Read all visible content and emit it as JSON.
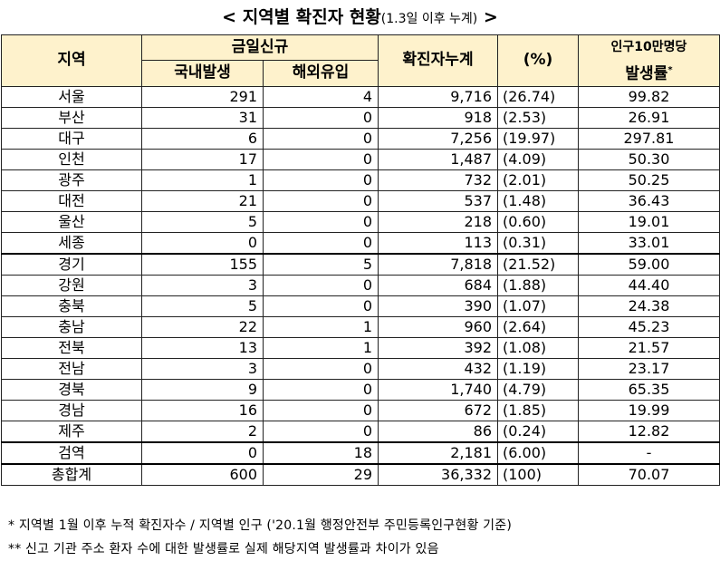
{
  "title": {
    "main": "< 지역별 확진자 현황",
    "sub": "(1.3일 이후 누계)",
    "end": " >"
  },
  "header": {
    "region": "지역",
    "new_cases": "금일신규",
    "domestic": "국내발생",
    "overseas": "해외유입",
    "cumulative": "확진자누계",
    "percent": "(%)",
    "rate_line1": "인구10만명당",
    "rate_line2": "발생률",
    "rate_mark": "*"
  },
  "rows": [
    {
      "region": "서울",
      "domestic": "291",
      "overseas": "4",
      "cumulative": "9,716",
      "percent": "(26.74)",
      "rate": "99.82"
    },
    {
      "region": "부산",
      "domestic": "31",
      "overseas": "0",
      "cumulative": "918",
      "percent": "(2.53)",
      "rate": "26.91"
    },
    {
      "region": "대구",
      "domestic": "6",
      "overseas": "0",
      "cumulative": "7,256",
      "percent": "(19.97)",
      "rate": "297.81"
    },
    {
      "region": "인천",
      "domestic": "17",
      "overseas": "0",
      "cumulative": "1,487",
      "percent": "(4.09)",
      "rate": "50.30"
    },
    {
      "region": "광주",
      "domestic": "1",
      "overseas": "0",
      "cumulative": "732",
      "percent": "(2.01)",
      "rate": "50.25"
    },
    {
      "region": "대전",
      "domestic": "21",
      "overseas": "0",
      "cumulative": "537",
      "percent": "(1.48)",
      "rate": "36.43"
    },
    {
      "region": "울산",
      "domestic": "5",
      "overseas": "0",
      "cumulative": "218",
      "percent": "(0.60)",
      "rate": "19.01"
    },
    {
      "region": "세종",
      "domestic": "0",
      "overseas": "0",
      "cumulative": "113",
      "percent": "(0.31)",
      "rate": "33.01"
    },
    {
      "region": "경기",
      "domestic": "155",
      "overseas": "5",
      "cumulative": "7,818",
      "percent": "(21.52)",
      "rate": "59.00"
    },
    {
      "region": "강원",
      "domestic": "3",
      "overseas": "0",
      "cumulative": "684",
      "percent": "(1.88)",
      "rate": "44.40"
    },
    {
      "region": "충북",
      "domestic": "5",
      "overseas": "0",
      "cumulative": "390",
      "percent": "(1.07)",
      "rate": "24.38"
    },
    {
      "region": "충남",
      "domestic": "22",
      "overseas": "1",
      "cumulative": "960",
      "percent": "(2.64)",
      "rate": "45.23"
    },
    {
      "region": "전북",
      "domestic": "13",
      "overseas": "1",
      "cumulative": "392",
      "percent": "(1.08)",
      "rate": "21.57"
    },
    {
      "region": "전남",
      "domestic": "3",
      "overseas": "0",
      "cumulative": "432",
      "percent": "(1.19)",
      "rate": "23.17"
    },
    {
      "region": "경북",
      "domestic": "9",
      "overseas": "0",
      "cumulative": "1,740",
      "percent": "(4.79)",
      "rate": "65.35"
    },
    {
      "region": "경남",
      "domestic": "16",
      "overseas": "0",
      "cumulative": "672",
      "percent": "(1.85)",
      "rate": "19.99"
    },
    {
      "region": "제주",
      "domestic": "2",
      "overseas": "0",
      "cumulative": "86",
      "percent": "(0.24)",
      "rate": "12.82"
    },
    {
      "region": "검역",
      "domestic": "0",
      "overseas": "18",
      "cumulative": "2,181",
      "percent": "(6.00)",
      "rate": "-"
    },
    {
      "region": "총합계",
      "domestic": "600",
      "overseas": "29",
      "cumulative": "36,332",
      "percent": "(100)",
      "rate": "70.07"
    }
  ],
  "notes": [
    "* 지역별 1월 이후 누적 확진자수 / 지역별 인구 ('20.1월 행정안전부 주민등록인구현황 기준)",
    "** 신고 기관 주소 환자 수에 대한 발생률로 실제 해당지역 발생률과 차이가 있음"
  ],
  "colors": {
    "header_bg": "#fef2cc",
    "border": "#222222"
  }
}
